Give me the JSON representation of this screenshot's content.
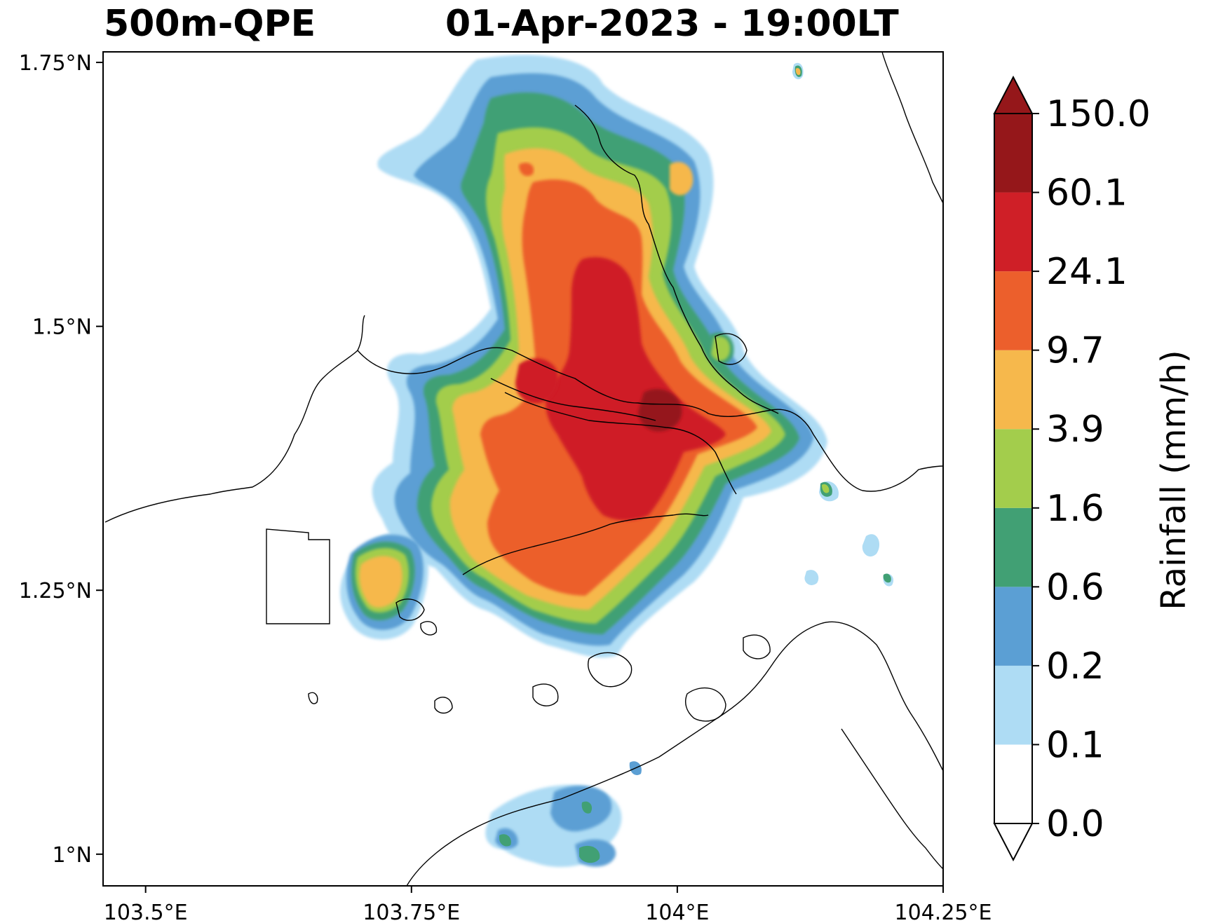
{
  "title": {
    "product": "500m-QPE",
    "datetime": "01-Apr-2023 - 19:00LT"
  },
  "map": {
    "lon_range": [
      103.46,
      104.25
    ],
    "lat_range": [
      0.97,
      1.76
    ],
    "lat_ticks": [
      {
        "value": 1.75,
        "label": "1.75°N"
      },
      {
        "value": 1.5,
        "label": "1.5°N"
      },
      {
        "value": 1.25,
        "label": "1.25°N"
      },
      {
        "value": 1.0,
        "label": "1°N"
      }
    ],
    "lon_ticks": [
      {
        "value": 103.5,
        "label": "103.5°E"
      },
      {
        "value": 103.75,
        "label": "103.75°E"
      },
      {
        "value": 104.0,
        "label": "104°E"
      },
      {
        "value": 104.25,
        "label": "104.25°E"
      }
    ],
    "coastline_color": "#000000"
  },
  "colorbar": {
    "label": "Rainfall (mm/h)",
    "bounds": [
      "0.0",
      "0.1",
      "0.2",
      "0.6",
      "1.6",
      "3.9",
      "9.7",
      "24.1",
      "60.1",
      "150.0"
    ],
    "colors": [
      "#ffffff",
      "#aedcf4",
      "#5b9fd4",
      "#41a074",
      "#a3cd4c",
      "#f6b84c",
      "#ec5f2c",
      "#cf1f27",
      "#95171a"
    ],
    "extend": "both",
    "over_color": "#95171a",
    "under_color": "#ffffff"
  },
  "rain_field": {
    "description_levels": "nested contours of rainfall intensity",
    "core_location": {
      "lon": 103.99,
      "lat": 1.42
    },
    "max_band": "60.1-150.0"
  }
}
